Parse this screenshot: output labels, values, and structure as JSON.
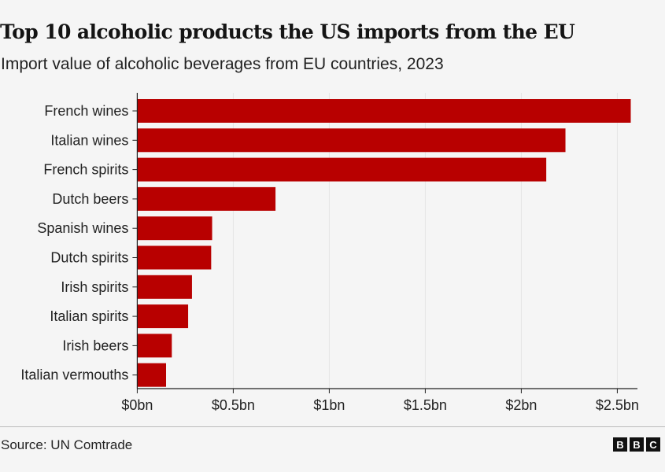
{
  "title": "Top 10 alcoholic products the US imports from the EU",
  "subtitle": "Import value of alcoholic beverages from EU countries, 2023",
  "source": "Source: UN Comtrade",
  "logo": "BBC",
  "colors": {
    "bar": "#b80000",
    "background": "#f5f5f5",
    "grid": "#e4e4e4"
  },
  "chart_data": {
    "type": "bar",
    "orientation": "horizontal",
    "categories": [
      "French wines",
      "Italian wines",
      "French spirits",
      "Dutch beers",
      "Spanish wines",
      "Dutch spirits",
      "Irish spirits",
      "Italian spirits",
      "Irish beers",
      "Italian vermouths"
    ],
    "values": [
      2.57,
      2.23,
      2.13,
      0.72,
      0.39,
      0.385,
      0.285,
      0.265,
      0.18,
      0.15
    ],
    "unit": "$bn",
    "xlim": [
      0,
      2.6
    ],
    "xticks": [
      0,
      0.5,
      1,
      1.5,
      2,
      2.5
    ],
    "xtick_labels": [
      "$0bn",
      "$0.5bn",
      "$1bn",
      "$1.5bn",
      "$2bn",
      "$2.5bn"
    ],
    "grid": true,
    "xlabel": "",
    "ylabel": ""
  }
}
